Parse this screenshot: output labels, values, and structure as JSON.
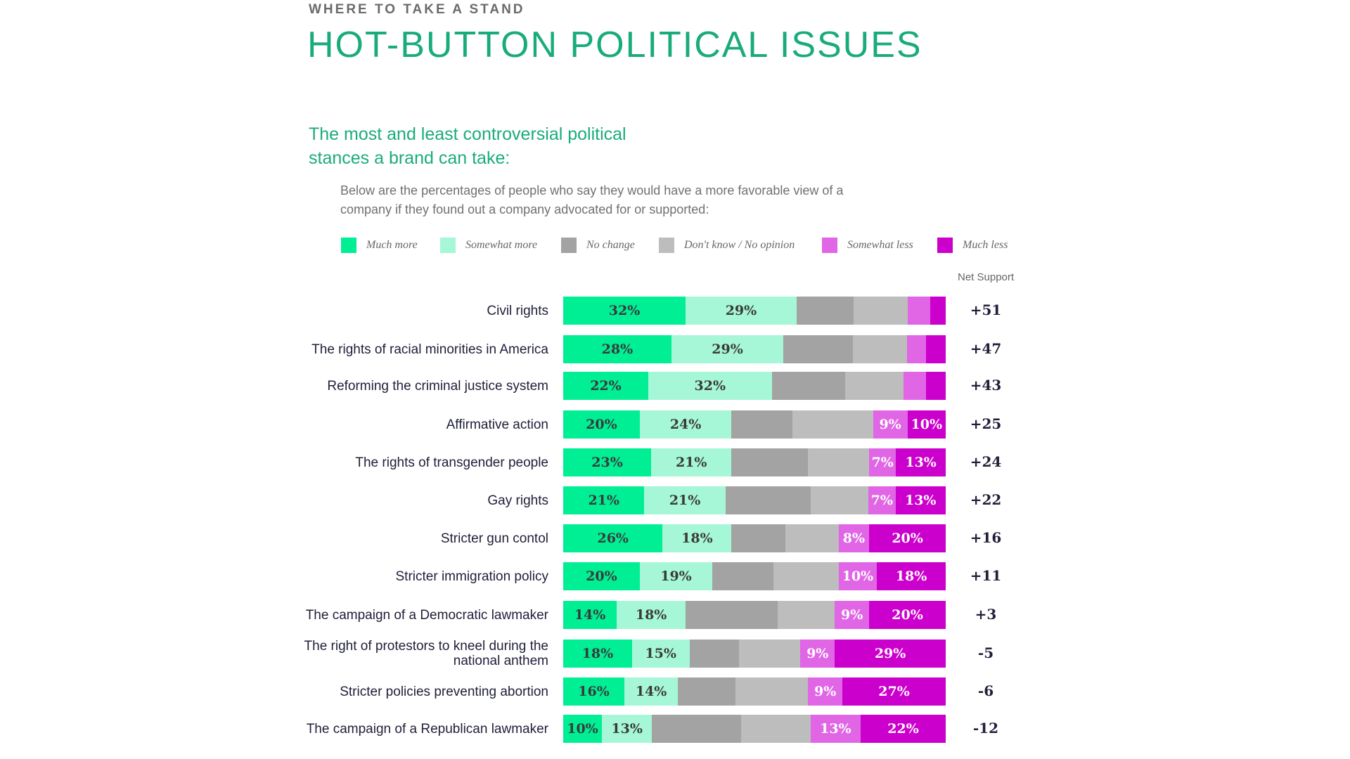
{
  "header": {
    "kicker": "WHERE TO TAKE A STAND",
    "title": "HOT-BUTTON POLITICAL ISSUES",
    "subtitle": "The most and least controversial political stances a brand can take:",
    "description": "Below are the percentages of people who say they would have a more favorable view of a company if they found out a company advocated for or supported:"
  },
  "chart_data": {
    "type": "bar",
    "orientation": "horizontal",
    "stacked": true,
    "unit": "%",
    "legend_position": "top",
    "net_label": "Net Support",
    "categories": [
      "Civil rights",
      "The rights of racial minorities in America",
      "Reforming the criminal justice system",
      "Affirmative action",
      "The rights of transgender people",
      "Gay rights",
      "Stricter gun contol",
      "Stricter immigration policy",
      "The campaign of a Democratic lawmaker",
      "The right of protestors to kneel during the national anthem",
      "Stricter policies preventing abortion",
      "The campaign of a Republican lawmaker"
    ],
    "series": [
      {
        "name": "Much more",
        "color": "#00ee94",
        "text_color": "#3a3a3a",
        "labeled": [
          true,
          true,
          true,
          true,
          true,
          true,
          true,
          true,
          true,
          true,
          true,
          true
        ],
        "values": [
          32,
          28,
          22,
          20,
          23,
          21,
          26,
          20,
          14,
          18,
          16,
          10
        ]
      },
      {
        "name": "Somewhat more",
        "color": "#a6f7d8",
        "text_color": "#3a3a3a",
        "labeled": [
          true,
          true,
          true,
          true,
          true,
          true,
          true,
          true,
          true,
          true,
          true,
          true
        ],
        "values": [
          29,
          29,
          32,
          24,
          21,
          21,
          18,
          19,
          18,
          15,
          14,
          13
        ]
      },
      {
        "name": "No change",
        "color": "#a3a3a3",
        "text_color": "#3a3a3a",
        "labeled": [
          false,
          false,
          false,
          false,
          false,
          false,
          false,
          false,
          false,
          false,
          false,
          false
        ],
        "values": [
          15,
          18,
          19,
          16,
          20,
          22,
          14,
          16,
          24,
          13,
          15,
          23
        ]
      },
      {
        "name": "Don't know / No opinion",
        "color": "#bdbdbd",
        "text_color": "#3a3a3a",
        "labeled": [
          false,
          false,
          false,
          false,
          false,
          false,
          false,
          false,
          false,
          false,
          false,
          false
        ],
        "values": [
          14,
          14,
          15,
          21,
          16,
          15,
          14,
          17,
          15,
          16,
          19,
          18
        ]
      },
      {
        "name": "Somewhat less",
        "color": "#e066e6",
        "text_color": "#ffffff",
        "labeled": [
          false,
          false,
          false,
          true,
          true,
          true,
          true,
          true,
          true,
          true,
          true,
          true
        ],
        "values": [
          6,
          5,
          6,
          9,
          7,
          7,
          8,
          10,
          9,
          9,
          9,
          13
        ]
      },
      {
        "name": "Much less",
        "color": "#cc00cc",
        "text_color": "#ffffff",
        "labeled": [
          false,
          false,
          false,
          true,
          true,
          true,
          true,
          true,
          true,
          true,
          true,
          true
        ],
        "values": [
          4,
          5,
          5,
          10,
          13,
          13,
          20,
          18,
          20,
          29,
          27,
          22
        ]
      }
    ],
    "net_support": [
      "+51",
      "+47",
      "+43",
      "+25",
      "+24",
      "+22",
      "+16",
      "+11",
      "+3",
      "-5",
      "-6",
      "-12"
    ]
  }
}
